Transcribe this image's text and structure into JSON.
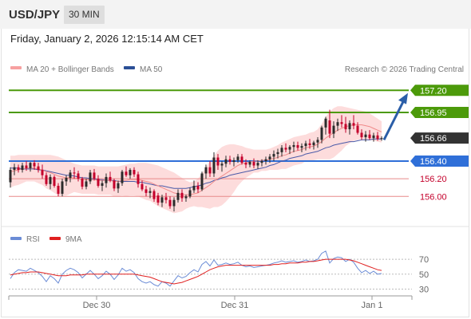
{
  "header": {
    "symbol": "USD/JPY",
    "timeframe": "30 MIN"
  },
  "datetime": "Friday, January 2, 2026 12:15:14 AM CET",
  "credit": "Research © 2026 Trading Central",
  "colors": {
    "up": "#2b2b2b",
    "down": "#c4002b",
    "bollinger_band": "#fddcdc",
    "bollinger_line": "#f08a8a",
    "ma50": "#4a5aa8",
    "resistance": "#4c9a0a",
    "pivot": "#2f6fd8",
    "support": "#e88a8a",
    "last_price_bg": "#333333",
    "arrow": "#2b5ea8",
    "rsi": "#6b8cd6",
    "rsi_ma": "#e02020"
  },
  "chart_data": [
    {
      "type": "candlestick",
      "legend": [
        {
          "name": "MA 20 + Bollinger Bands",
          "color": "#f08a8a"
        },
        {
          "name": "MA 50",
          "color": "#2b4f96"
        }
      ],
      "ylim": [
        155.75,
        157.32
      ],
      "x_ticks": [
        "Dec 30",
        "Dec 31",
        "Jan 1"
      ],
      "levels": [
        {
          "label": "157.20",
          "value": 157.2,
          "kind": "resistance"
        },
        {
          "label": "156.95",
          "value": 156.95,
          "kind": "resistance"
        },
        {
          "label": "156.66",
          "value": 156.66,
          "kind": "last"
        },
        {
          "label": "156.40",
          "value": 156.4,
          "kind": "pivot"
        },
        {
          "label": "156.20",
          "value": 156.2,
          "kind": "support"
        },
        {
          "label": "156.00",
          "value": 156.0,
          "kind": "support"
        }
      ],
      "forecast_arrow": {
        "from": 156.64,
        "to": 157.17
      },
      "candles": [
        [
          156.16,
          156.33,
          156.1,
          156.3
        ],
        [
          156.3,
          156.37,
          156.24,
          156.33
        ],
        [
          156.33,
          156.36,
          156.27,
          156.3
        ],
        [
          156.3,
          156.38,
          156.27,
          156.35
        ],
        [
          156.35,
          156.4,
          156.29,
          156.32
        ],
        [
          156.32,
          156.39,
          156.28,
          156.38
        ],
        [
          156.38,
          156.41,
          156.3,
          156.34
        ],
        [
          156.34,
          156.38,
          156.27,
          156.3
        ],
        [
          156.3,
          156.36,
          156.2,
          156.24
        ],
        [
          156.24,
          156.27,
          156.12,
          156.14
        ],
        [
          156.14,
          156.25,
          156.08,
          156.22
        ],
        [
          156.22,
          156.24,
          156.1,
          156.12
        ],
        [
          156.12,
          156.15,
          156.0,
          156.03
        ],
        [
          156.03,
          156.2,
          156.0,
          156.17
        ],
        [
          156.17,
          156.24,
          156.12,
          156.21
        ],
        [
          156.21,
          156.3,
          156.16,
          156.27
        ],
        [
          156.27,
          156.33,
          156.2,
          156.26
        ],
        [
          156.26,
          156.29,
          156.17,
          156.2
        ],
        [
          156.2,
          156.22,
          156.08,
          156.11
        ],
        [
          156.11,
          156.2,
          156.08,
          156.17
        ],
        [
          156.17,
          156.3,
          156.14,
          156.27
        ],
        [
          156.27,
          156.31,
          156.18,
          156.2
        ],
        [
          156.2,
          156.24,
          156.1,
          156.12
        ],
        [
          156.12,
          156.18,
          156.06,
          156.15
        ],
        [
          156.15,
          156.26,
          156.1,
          156.22
        ],
        [
          156.22,
          156.28,
          156.16,
          156.18
        ],
        [
          156.18,
          156.2,
          156.06,
          156.09
        ],
        [
          156.09,
          156.18,
          156.04,
          156.15
        ],
        [
          156.15,
          156.3,
          156.12,
          156.28
        ],
        [
          156.28,
          156.34,
          156.22,
          156.24
        ],
        [
          156.24,
          156.32,
          156.2,
          156.3
        ],
        [
          156.3,
          156.33,
          156.22,
          156.25
        ],
        [
          156.25,
          156.28,
          156.1,
          156.14
        ],
        [
          156.14,
          156.18,
          156.06,
          156.08
        ],
        [
          156.08,
          156.12,
          156.0,
          156.04
        ],
        [
          156.04,
          156.1,
          155.98,
          156.06
        ],
        [
          156.06,
          156.08,
          155.94,
          155.97
        ],
        [
          156.01,
          156.04,
          155.9,
          155.93
        ],
        [
          155.93,
          156.02,
          155.88,
          155.99
        ],
        [
          155.99,
          156.04,
          155.92,
          155.96
        ],
        [
          155.96,
          156.0,
          155.86,
          155.89
        ],
        [
          155.89,
          155.99,
          155.83,
          155.96
        ],
        [
          155.96,
          156.08,
          155.93,
          156.04
        ],
        [
          156.04,
          156.08,
          155.94,
          155.98
        ],
        [
          155.98,
          156.02,
          155.94,
          156.0
        ],
        [
          156.0,
          156.1,
          155.98,
          156.07
        ],
        [
          156.07,
          156.18,
          156.04,
          156.12
        ],
        [
          156.12,
          156.16,
          156.04,
          156.08
        ],
        [
          156.08,
          156.28,
          156.06,
          156.26
        ],
        [
          156.26,
          156.36,
          156.2,
          156.33
        ],
        [
          156.33,
          156.4,
          156.22,
          156.26
        ],
        [
          156.26,
          156.5,
          156.22,
          156.44
        ],
        [
          156.44,
          156.48,
          156.3,
          156.35
        ],
        [
          156.35,
          156.4,
          156.28,
          156.37
        ],
        [
          156.37,
          156.46,
          156.33,
          156.42
        ],
        [
          156.42,
          156.46,
          156.36,
          156.39
        ],
        [
          156.39,
          156.44,
          156.34,
          156.41
        ],
        [
          156.41,
          156.48,
          156.38,
          156.45
        ],
        [
          156.45,
          156.48,
          156.36,
          156.38
        ],
        [
          156.38,
          156.42,
          156.32,
          156.36
        ],
        [
          156.36,
          156.41,
          156.33,
          156.39
        ],
        [
          156.39,
          156.43,
          156.32,
          156.35
        ],
        [
          156.35,
          156.41,
          156.31,
          156.38
        ],
        [
          156.38,
          156.42,
          156.34,
          156.4
        ],
        [
          156.4,
          156.45,
          156.36,
          156.42
        ],
        [
          156.42,
          156.48,
          156.38,
          156.45
        ],
        [
          156.45,
          156.52,
          156.4,
          156.48
        ],
        [
          156.48,
          156.54,
          156.43,
          156.5
        ],
        [
          156.5,
          156.58,
          156.45,
          156.55
        ],
        [
          156.55,
          156.6,
          156.5,
          156.53
        ],
        [
          156.53,
          156.58,
          156.48,
          156.56
        ],
        [
          156.56,
          156.62,
          156.5,
          156.58
        ],
        [
          156.58,
          156.62,
          156.52,
          156.55
        ],
        [
          156.55,
          156.6,
          156.5,
          156.57
        ],
        [
          156.57,
          156.63,
          156.52,
          156.6
        ],
        [
          156.6,
          156.65,
          156.54,
          156.58
        ],
        [
          156.58,
          156.63,
          156.53,
          156.61
        ],
        [
          156.61,
          156.67,
          156.55,
          156.64
        ],
        [
          156.64,
          156.8,
          156.6,
          156.78
        ],
        [
          156.78,
          156.9,
          156.7,
          156.88
        ],
        [
          156.86,
          156.98,
          156.66,
          156.71
        ],
        [
          156.71,
          156.85,
          156.66,
          156.8
        ],
        [
          156.8,
          156.88,
          156.74,
          156.84
        ],
        [
          156.84,
          156.92,
          156.78,
          156.82
        ],
        [
          156.82,
          156.9,
          156.72,
          156.76
        ],
        [
          156.76,
          156.86,
          156.7,
          156.83
        ],
        [
          156.83,
          156.92,
          156.76,
          156.8
        ],
        [
          156.8,
          156.84,
          156.7,
          156.72
        ],
        [
          156.72,
          156.76,
          156.64,
          156.67
        ],
        [
          156.67,
          156.74,
          156.62,
          156.7
        ],
        [
          156.7,
          156.75,
          156.64,
          156.66
        ],
        [
          156.66,
          156.72,
          156.62,
          156.69
        ],
        [
          156.69,
          156.73,
          156.63,
          156.65
        ],
        [
          156.65,
          156.68,
          156.63,
          156.66
        ]
      ],
      "ma20": [
        156.28,
        156.29,
        156.3,
        156.31,
        156.32,
        156.32,
        156.32,
        156.31,
        156.3,
        156.28,
        156.27,
        156.25,
        156.23,
        156.22,
        156.21,
        156.21,
        156.21,
        156.2,
        156.19,
        156.19,
        156.19,
        156.19,
        156.18,
        156.18,
        156.18,
        156.18,
        156.17,
        156.17,
        156.18,
        156.18,
        156.19,
        156.19,
        156.19,
        156.18,
        156.17,
        156.16,
        156.14,
        156.12,
        156.1,
        156.08,
        156.06,
        156.04,
        156.03,
        156.02,
        156.02,
        156.02,
        156.03,
        156.04,
        156.07,
        156.1,
        156.13,
        156.17,
        156.2,
        156.23,
        156.26,
        156.29,
        156.32,
        156.35,
        156.37,
        156.38,
        156.39,
        156.4,
        156.4,
        156.41,
        156.41,
        156.42,
        156.43,
        156.44,
        156.46,
        156.47,
        156.49,
        156.51,
        156.52,
        156.53,
        156.55,
        156.56,
        156.57,
        156.59,
        156.62,
        156.66,
        156.69,
        156.72,
        156.75,
        156.77,
        156.79,
        156.8,
        156.81,
        156.81,
        156.81,
        156.8,
        156.79,
        156.77,
        156.75,
        156.73
      ],
      "bollinger_upper": [
        156.46,
        156.46,
        156.47,
        156.47,
        156.47,
        156.47,
        156.47,
        156.47,
        156.47,
        156.47,
        156.47,
        156.46,
        156.45,
        156.43,
        156.41,
        156.39,
        156.37,
        156.36,
        156.35,
        156.35,
        156.35,
        156.35,
        156.34,
        156.34,
        156.34,
        156.34,
        156.34,
        156.34,
        156.35,
        156.36,
        156.37,
        156.37,
        156.38,
        156.38,
        156.38,
        156.37,
        156.36,
        156.35,
        156.33,
        156.31,
        156.29,
        156.27,
        156.24,
        156.21,
        156.18,
        156.16,
        156.17,
        156.2,
        156.26,
        156.33,
        156.4,
        156.46,
        156.52,
        156.56,
        156.58,
        156.59,
        156.59,
        156.58,
        156.57,
        156.55,
        156.54,
        156.53,
        156.53,
        156.53,
        156.53,
        156.54,
        156.56,
        156.58,
        156.61,
        156.63,
        156.65,
        156.67,
        156.68,
        156.69,
        156.7,
        156.72,
        156.73,
        156.76,
        156.82,
        156.9,
        156.96,
        157.0,
        157.02,
        157.02,
        157.01,
        157.0,
        156.99,
        156.98,
        156.97,
        156.96,
        156.94,
        156.91,
        156.88,
        156.85
      ],
      "bollinger_lower": [
        156.1,
        156.12,
        156.13,
        156.15,
        156.17,
        156.17,
        156.17,
        156.15,
        156.13,
        156.09,
        156.07,
        156.04,
        156.01,
        156.01,
        156.01,
        156.03,
        156.05,
        156.04,
        156.03,
        156.03,
        156.03,
        156.03,
        156.02,
        156.02,
        156.02,
        156.02,
        156.0,
        156.0,
        156.01,
        156.0,
        156.01,
        156.01,
        156.0,
        155.98,
        155.96,
        155.95,
        155.92,
        155.89,
        155.87,
        155.85,
        155.83,
        155.81,
        155.82,
        155.83,
        155.86,
        155.88,
        155.89,
        155.88,
        155.88,
        155.87,
        155.86,
        155.88,
        155.88,
        155.9,
        155.94,
        155.99,
        156.05,
        156.12,
        156.17,
        156.21,
        156.24,
        156.27,
        156.27,
        156.29,
        156.29,
        156.3,
        156.3,
        156.3,
        156.31,
        156.31,
        156.33,
        156.35,
        156.36,
        156.37,
        156.4,
        156.4,
        156.41,
        156.42,
        156.42,
        156.42,
        156.42,
        156.44,
        156.48,
        156.52,
        156.57,
        156.6,
        156.63,
        156.64,
        156.65,
        156.64,
        156.64,
        156.63,
        156.62,
        156.61
      ],
      "ma50": [
        156.32,
        156.32,
        156.32,
        156.31,
        156.31,
        156.31,
        156.31,
        156.3,
        156.3,
        156.29,
        156.28,
        156.27,
        156.26,
        156.25,
        156.24,
        156.24,
        156.23,
        156.22,
        156.21,
        156.21,
        156.2,
        156.2,
        156.19,
        156.19,
        156.18,
        156.18,
        156.18,
        156.17,
        156.17,
        156.17,
        156.17,
        156.17,
        156.16,
        156.16,
        156.15,
        156.14,
        156.13,
        156.12,
        156.12,
        156.11,
        156.1,
        156.09,
        156.09,
        156.09,
        156.09,
        156.1,
        156.11,
        156.12,
        156.13,
        156.15,
        156.16,
        156.18,
        156.19,
        156.21,
        156.22,
        156.24,
        156.25,
        156.26,
        156.27,
        156.28,
        156.29,
        156.3,
        156.31,
        156.32,
        156.33,
        156.35,
        156.36,
        156.38,
        156.4,
        156.41,
        156.43,
        156.44,
        156.45,
        156.46,
        156.48,
        156.49,
        156.5,
        156.51,
        156.53,
        156.55,
        156.56,
        156.58,
        156.59,
        156.6,
        156.61,
        156.62,
        156.62,
        156.63,
        156.64,
        156.64,
        156.64,
        156.65,
        156.65,
        156.65
      ]
    },
    {
      "type": "line",
      "legend": [
        {
          "name": "RSI",
          "color": "#6b8cd6"
        },
        {
          "name": "9MA",
          "color": "#e02020"
        }
      ],
      "ylim": [
        22,
        84
      ],
      "y_ticks": [
        70,
        50,
        30
      ],
      "series": [
        {
          "name": "RSI",
          "values": [
            44,
            52,
            56,
            55,
            54,
            58,
            55,
            52,
            47,
            40,
            48,
            44,
            38,
            50,
            55,
            58,
            56,
            52,
            45,
            50,
            55,
            50,
            44,
            48,
            54,
            50,
            43,
            49,
            58,
            54,
            56,
            52,
            44,
            40,
            38,
            40,
            36,
            34,
            40,
            38,
            34,
            41,
            48,
            45,
            47,
            52,
            56,
            53,
            63,
            67,
            61,
            69,
            62,
            63,
            65,
            63,
            64,
            66,
            62,
            60,
            61,
            59,
            60,
            61,
            62,
            63,
            65,
            66,
            68,
            66,
            67,
            68,
            66,
            67,
            69,
            67,
            68,
            70,
            78,
            81,
            65,
            71,
            73,
            72,
            67,
            70,
            66,
            58,
            52,
            55,
            51,
            54,
            50,
            51
          ]
        },
        {
          "name": "9MA",
          "values": [
            49,
            50,
            51,
            52,
            52,
            53,
            53,
            53,
            52,
            51,
            50,
            49,
            48,
            48,
            48,
            49,
            49,
            49,
            49,
            50,
            50,
            50,
            50,
            50,
            50,
            50,
            50,
            50,
            50,
            50,
            50,
            50,
            49,
            48,
            47,
            46,
            44,
            42,
            40,
            39,
            38,
            37,
            38,
            39,
            41,
            43,
            45,
            47,
            50,
            53,
            56,
            58,
            60,
            61,
            62,
            62,
            62,
            62,
            62,
            62,
            62,
            62,
            62,
            62,
            62,
            62,
            63,
            63,
            64,
            64,
            65,
            65,
            65,
            66,
            66,
            67,
            67,
            68,
            69,
            70,
            70,
            70,
            70,
            70,
            70,
            69,
            68,
            66,
            64,
            62,
            60,
            58,
            56,
            55
          ]
        }
      ]
    }
  ]
}
